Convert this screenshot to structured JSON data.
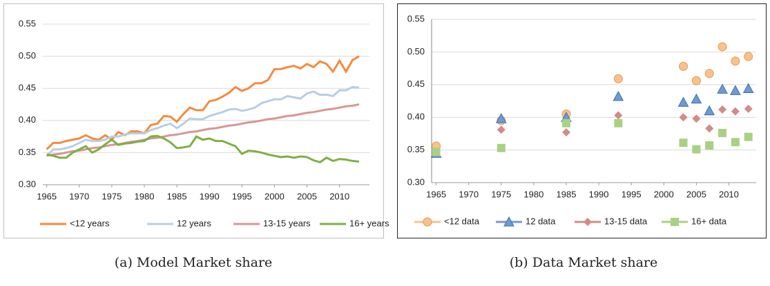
{
  "chart_data": [
    {
      "type": "line",
      "caption": "(a) Model Market share",
      "x": [
        1965,
        1966,
        1967,
        1968,
        1969,
        1970,
        1971,
        1972,
        1973,
        1974,
        1975,
        1976,
        1977,
        1978,
        1979,
        1980,
        1981,
        1982,
        1983,
        1984,
        1985,
        1986,
        1987,
        1988,
        1989,
        1990,
        1991,
        1992,
        1993,
        1994,
        1995,
        1996,
        1997,
        1998,
        1999,
        2000,
        2001,
        2002,
        2003,
        2004,
        2005,
        2006,
        2007,
        2008,
        2009,
        2010,
        2011,
        2012,
        2013
      ],
      "xlim": [
        1964.4,
        2014.6
      ],
      "xticks": [
        1965,
        1970,
        1975,
        1980,
        1985,
        1990,
        1995,
        2000,
        2005,
        2010
      ],
      "ylim": [
        0.3,
        0.55
      ],
      "yticks": [
        {
          "value": 0.3,
          "label": "0.30"
        },
        0.35,
        {
          "value": 0.4,
          "label": "0.40"
        },
        0.45,
        {
          "value": 0.5,
          "label": "0.50"
        },
        0.55
      ],
      "grid": true,
      "legend": "bottom",
      "series": [
        {
          "name": "<12 years",
          "color": "#f58a3c",
          "values": [
            0.355,
            0.365,
            0.365,
            0.368,
            0.37,
            0.372,
            0.377,
            0.372,
            0.37,
            0.377,
            0.37,
            0.382,
            0.377,
            0.383,
            0.383,
            0.38,
            0.393,
            0.395,
            0.407,
            0.406,
            0.398,
            0.41,
            0.42,
            0.416,
            0.416,
            0.43,
            0.432,
            0.437,
            0.443,
            0.452,
            0.446,
            0.45,
            0.458,
            0.458,
            0.463,
            0.48,
            0.48,
            0.483,
            0.485,
            0.481,
            0.488,
            0.483,
            0.492,
            0.488,
            0.476,
            0.493,
            0.476,
            0.494,
            0.5
          ]
        },
        {
          "name": "12 years",
          "color": "#b8cde6",
          "values": [
            0.345,
            0.355,
            0.355,
            0.357,
            0.36,
            0.365,
            0.37,
            0.368,
            0.368,
            0.37,
            0.375,
            0.375,
            0.378,
            0.38,
            0.38,
            0.38,
            0.385,
            0.388,
            0.392,
            0.395,
            0.388,
            0.395,
            0.403,
            0.402,
            0.402,
            0.407,
            0.41,
            0.413,
            0.417,
            0.418,
            0.415,
            0.417,
            0.42,
            0.427,
            0.43,
            0.433,
            0.433,
            0.438,
            0.436,
            0.434,
            0.442,
            0.445,
            0.44,
            0.44,
            0.438,
            0.447,
            0.447,
            0.452,
            0.451
          ]
        },
        {
          "name": "13-15 years",
          "color": "#d99594",
          "values": [
            0.345,
            0.347,
            0.348,
            0.35,
            0.352,
            0.353,
            0.355,
            0.357,
            0.358,
            0.36,
            0.362,
            0.363,
            0.365,
            0.367,
            0.368,
            0.37,
            0.372,
            0.373,
            0.375,
            0.377,
            0.378,
            0.38,
            0.382,
            0.383,
            0.385,
            0.387,
            0.388,
            0.39,
            0.392,
            0.393,
            0.395,
            0.397,
            0.398,
            0.4,
            0.402,
            0.403,
            0.405,
            0.407,
            0.408,
            0.41,
            0.412,
            0.413,
            0.415,
            0.417,
            0.418,
            0.42,
            0.422,
            0.423,
            0.425
          ]
        },
        {
          "name": "16+ years",
          "color": "#7fae45",
          "values": [
            0.347,
            0.345,
            0.342,
            0.342,
            0.35,
            0.355,
            0.36,
            0.35,
            0.355,
            0.363,
            0.37,
            0.362,
            0.364,
            0.365,
            0.367,
            0.368,
            0.375,
            0.376,
            0.372,
            0.366,
            0.357,
            0.358,
            0.36,
            0.375,
            0.37,
            0.372,
            0.368,
            0.368,
            0.364,
            0.36,
            0.348,
            0.353,
            0.352,
            0.35,
            0.347,
            0.345,
            0.343,
            0.344,
            0.342,
            0.344,
            0.343,
            0.338,
            0.335,
            0.342,
            0.337,
            0.34,
            0.339,
            0.337,
            0.336
          ]
        }
      ]
    },
    {
      "type": "scatter",
      "caption": "(b) Data Market share",
      "x": [
        1965,
        1975,
        1985,
        1993,
        2003,
        2005,
        2007,
        2009,
        2011,
        2013
      ],
      "xlim": [
        1964.3,
        2014.2
      ],
      "xticks": [
        1965,
        1970,
        1975,
        1980,
        1985,
        1990,
        1995,
        2000,
        2005,
        2010
      ],
      "ylim": [
        0.3,
        0.55
      ],
      "yticks": [
        {
          "value": 0.3,
          "label": "0.30"
        },
        0.35,
        {
          "value": 0.4,
          "label": "0.40"
        },
        0.45,
        {
          "value": 0.5,
          "label": "0.50"
        },
        0.55
      ],
      "grid": true,
      "legend": "bottom",
      "series": [
        {
          "name": "<12 data",
          "color": "#f9c28c",
          "marker": "circle",
          "values": [
            0.356,
            0.395,
            0.405,
            0.459,
            0.478,
            0.456,
            0.467,
            0.508,
            0.486,
            0.493
          ]
        },
        {
          "name": "12 data",
          "color": "#6f9ad2",
          "marker": "triangle",
          "values": [
            0.345,
            0.398,
            0.4,
            0.432,
            0.423,
            0.428,
            0.41,
            0.443,
            0.441,
            0.444
          ]
        },
        {
          "name": "13-15 data",
          "color": "#d48a88",
          "marker": "diamond",
          "values": [
            0.347,
            0.381,
            0.377,
            0.403,
            0.4,
            0.398,
            0.383,
            0.412,
            0.409,
            0.413
          ]
        },
        {
          "name": "16+ data",
          "color": "#a9d183",
          "marker": "square",
          "values": [
            0.347,
            0.353,
            0.391,
            0.391,
            0.361,
            0.351,
            0.357,
            0.376,
            0.362,
            0.37
          ]
        }
      ]
    }
  ]
}
